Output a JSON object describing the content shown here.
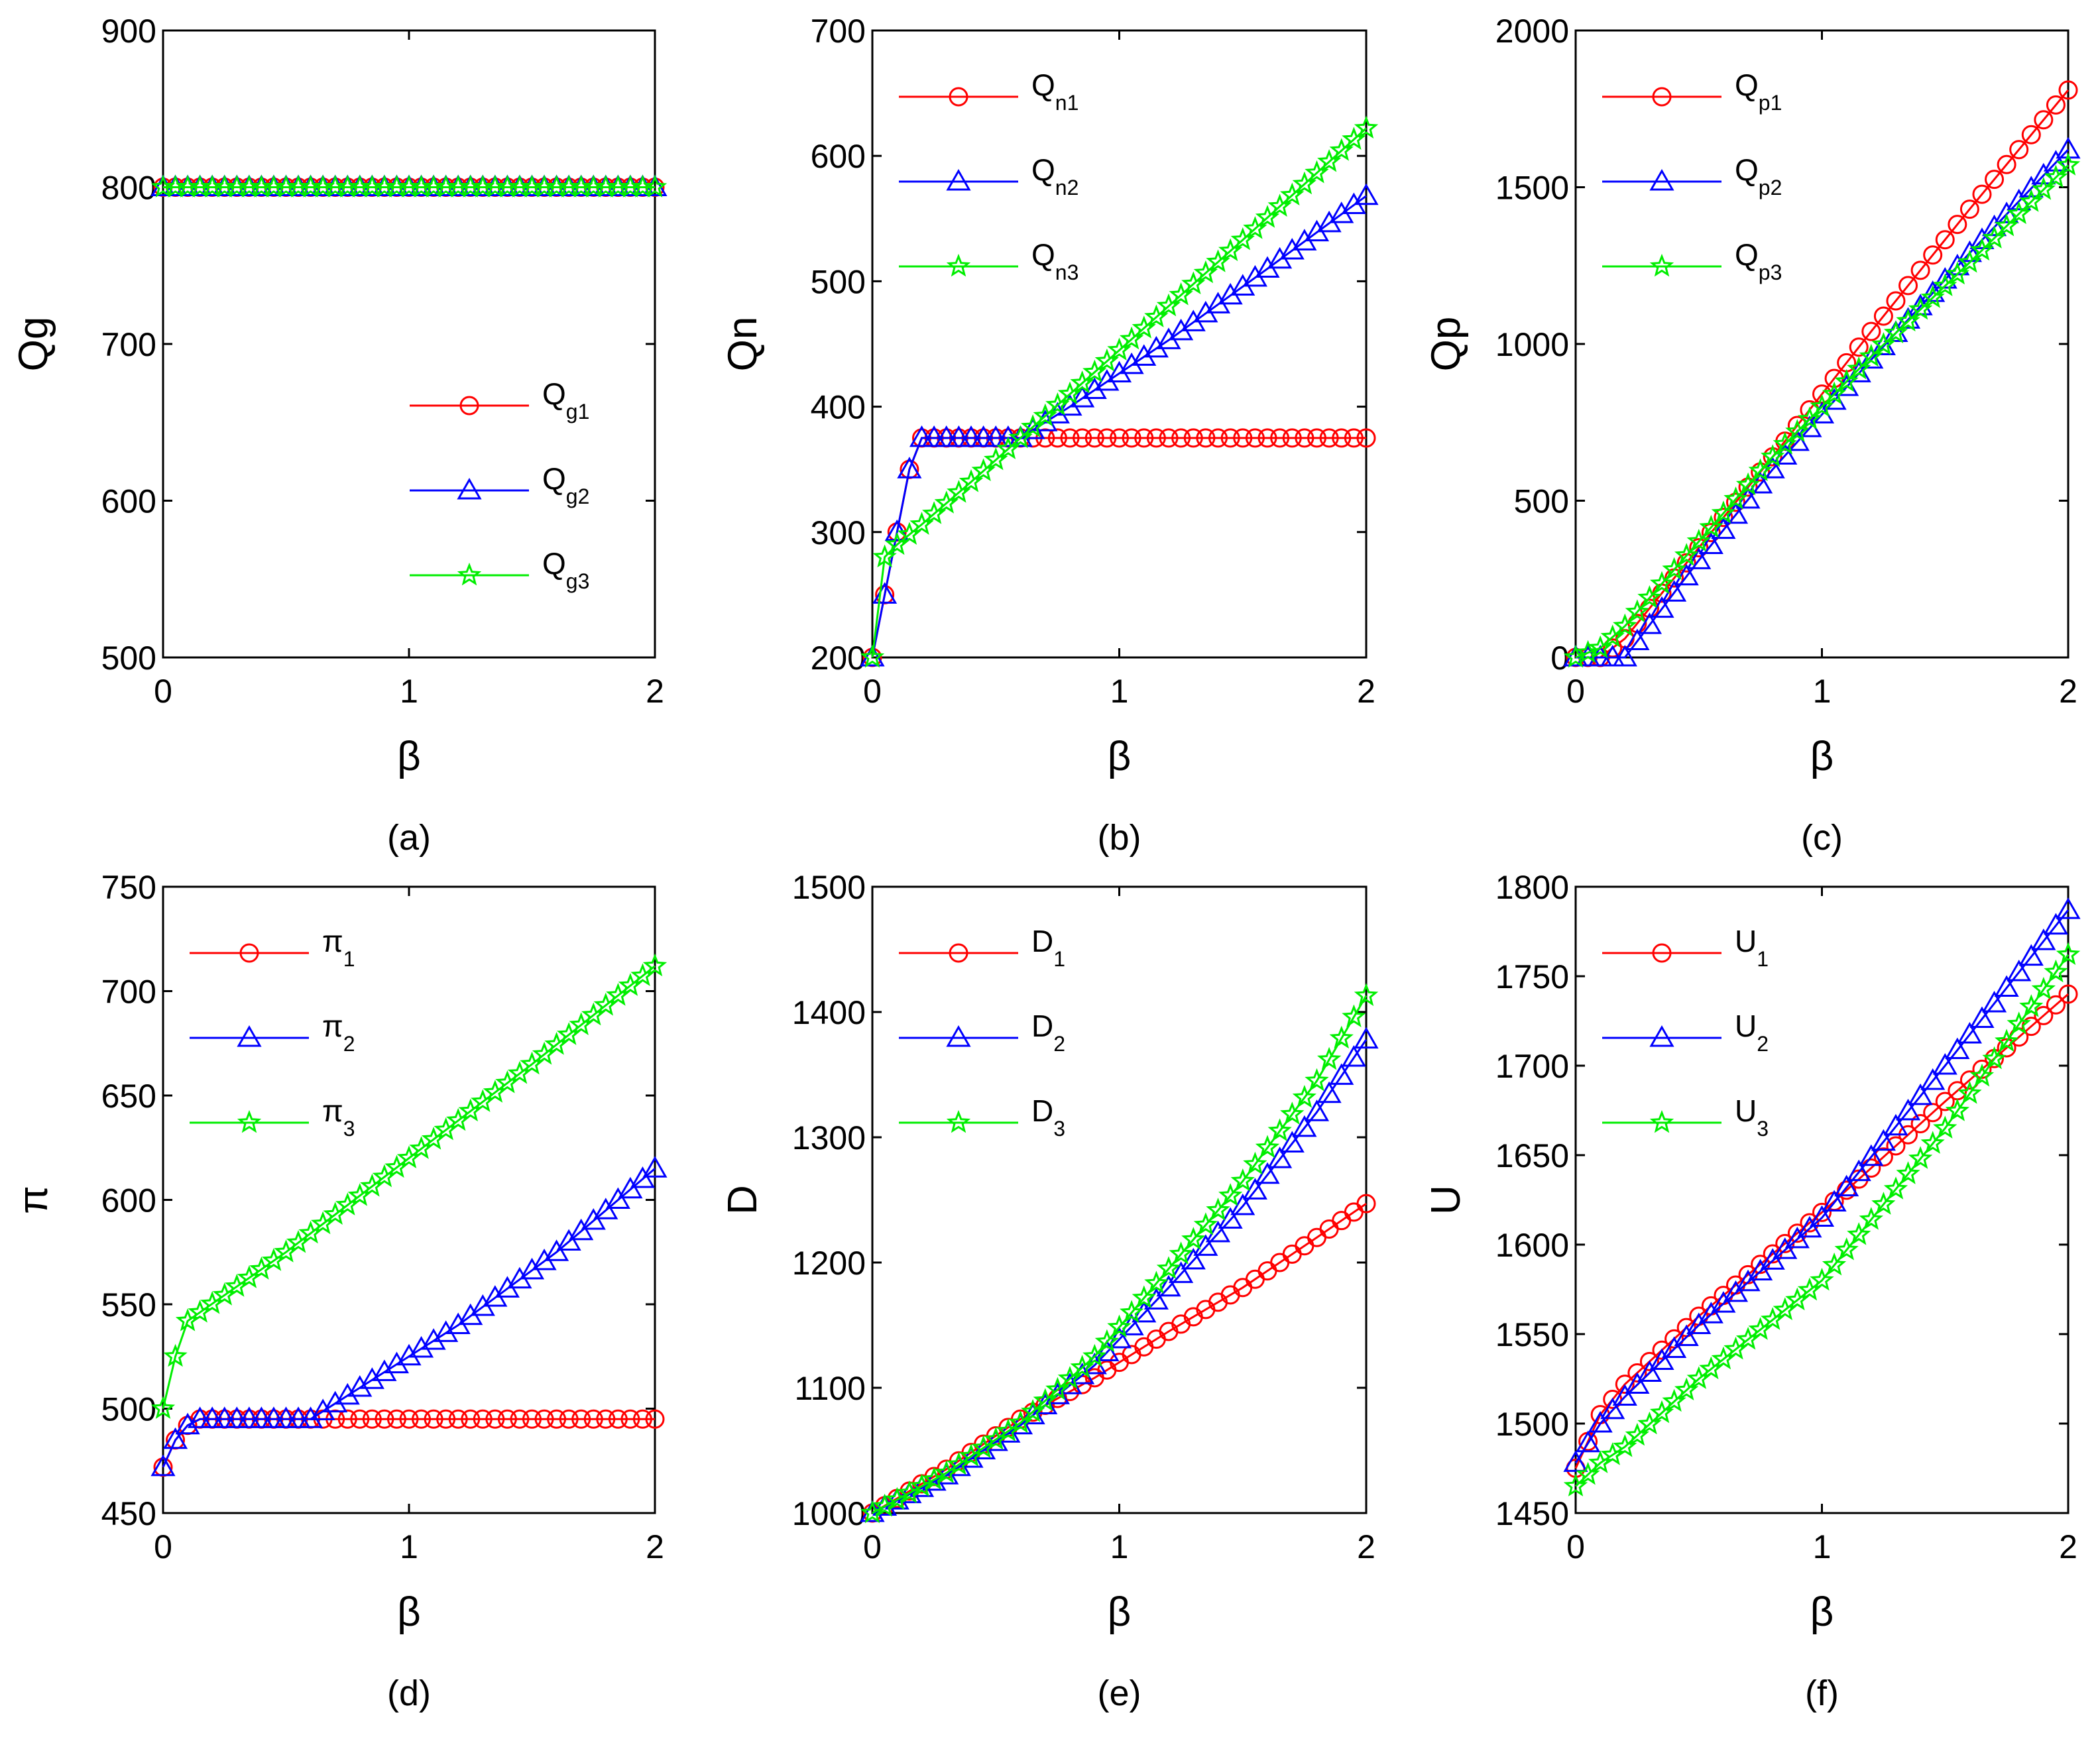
{
  "chart_data": [
    {
      "id": "a",
      "type": "line",
      "panel_label": "(a)",
      "xlabel": "β",
      "ylabel": "Qg",
      "xlim": [
        0,
        2
      ],
      "ylim": [
        500,
        900
      ],
      "xticks": [
        0,
        1,
        2
      ],
      "yticks": [
        500,
        600,
        700,
        800,
        900
      ],
      "legend_position": "bottom-right",
      "series": [
        {
          "name": "Q",
          "sub": "g1",
          "color": "#ff0000",
          "marker": "circle",
          "points": [
            [
              0,
              800
            ],
            [
              2,
              800
            ]
          ]
        },
        {
          "name": "Q",
          "sub": "g2",
          "color": "#0000ff",
          "marker": "triangle",
          "points": [
            [
              0,
              800
            ],
            [
              2,
              800
            ]
          ]
        },
        {
          "name": "Q",
          "sub": "g3",
          "color": "#00ee00",
          "marker": "star",
          "points": [
            [
              0,
              800
            ],
            [
              2,
              800
            ]
          ]
        }
      ]
    },
    {
      "id": "b",
      "type": "line",
      "panel_label": "(b)",
      "xlabel": "β",
      "ylabel": "Qn",
      "xlim": [
        0,
        2
      ],
      "ylim": [
        200,
        700
      ],
      "xticks": [
        0,
        1,
        2
      ],
      "yticks": [
        200,
        300,
        400,
        500,
        600,
        700
      ],
      "legend_position": "top-left",
      "series": [
        {
          "name": "Q",
          "sub": "n1",
          "color": "#ff0000",
          "marker": "circle",
          "points": [
            [
              0,
              200
            ],
            [
              0.05,
              250
            ],
            [
              0.1,
              300
            ],
            [
              0.15,
              350
            ],
            [
              0.2,
              375
            ],
            [
              2,
              375
            ]
          ]
        },
        {
          "name": "Q",
          "sub": "n2",
          "color": "#0000ff",
          "marker": "triangle",
          "points": [
            [
              0,
              200
            ],
            [
              0.05,
              250
            ],
            [
              0.1,
              300
            ],
            [
              0.15,
              350
            ],
            [
              0.2,
              375
            ],
            [
              0.6,
              375
            ],
            [
              0.8,
              400
            ],
            [
              1.2,
              453
            ],
            [
              1.6,
              510
            ],
            [
              2,
              568
            ]
          ]
        },
        {
          "name": "Q",
          "sub": "n3",
          "color": "#00ee00",
          "marker": "star",
          "points": [
            [
              0,
              200
            ],
            [
              0.05,
              280
            ],
            [
              0.1,
              290
            ],
            [
              0.2,
              306
            ],
            [
              0.4,
              340
            ],
            [
              0.6,
              375
            ],
            [
              1.0,
              445
            ],
            [
              1.5,
              533
            ],
            [
              2,
              622
            ]
          ]
        }
      ]
    },
    {
      "id": "c",
      "type": "line",
      "panel_label": "(c)",
      "xlabel": "β",
      "ylabel": "Qp",
      "xlim": [
        0,
        2
      ],
      "ylim": [
        0,
        2000
      ],
      "xticks": [
        0,
        1,
        2
      ],
      "yticks": [
        0,
        500,
        1000,
        1500,
        2000
      ],
      "legend_position": "top-left",
      "series": [
        {
          "name": "Q",
          "sub": "p1",
          "color": "#ff0000",
          "marker": "circle",
          "points": [
            [
              0,
              0
            ],
            [
              0.1,
              0
            ],
            [
              0.2,
              60
            ],
            [
              0.5,
              350
            ],
            [
              0.8,
              640
            ],
            [
              1.2,
              1040
            ],
            [
              1.6,
              1430
            ],
            [
              2,
              1810
            ]
          ]
        },
        {
          "name": "Q",
          "sub": "p2",
          "color": "#0000ff",
          "marker": "triangle",
          "points": [
            [
              0,
              0
            ],
            [
              0.15,
              0
            ],
            [
              0.2,
              0
            ],
            [
              0.5,
              310
            ],
            [
              0.8,
              600
            ],
            [
              1.2,
              950
            ],
            [
              1.6,
              1290
            ],
            [
              2,
              1620
            ]
          ]
        },
        {
          "name": "Q",
          "sub": "p3",
          "color": "#00ee00",
          "marker": "star",
          "points": [
            [
              0,
              0
            ],
            [
              0.1,
              30
            ],
            [
              0.2,
              100
            ],
            [
              0.5,
              370
            ],
            [
              0.8,
              640
            ],
            [
              1.2,
              960
            ],
            [
              1.6,
              1260
            ],
            [
              2,
              1570
            ]
          ]
        }
      ]
    },
    {
      "id": "d",
      "type": "line",
      "panel_label": "(d)",
      "xlabel": "β",
      "ylabel": "π",
      "xlim": [
        0,
        2
      ],
      "ylim": [
        450,
        750
      ],
      "xticks": [
        0,
        1,
        2
      ],
      "yticks": [
        450,
        500,
        550,
        600,
        650,
        700,
        750
      ],
      "legend_position": "top-left",
      "series": [
        {
          "name": "π",
          "sub": "1",
          "color": "#ff0000",
          "marker": "circle",
          "points": [
            [
              0,
              472
            ],
            [
              0.05,
              485
            ],
            [
              0.1,
              492
            ],
            [
              0.15,
              495
            ],
            [
              2,
              495
            ]
          ]
        },
        {
          "name": "π",
          "sub": "2",
          "color": "#0000ff",
          "marker": "triangle",
          "points": [
            [
              0,
              472
            ],
            [
              0.05,
              485
            ],
            [
              0.1,
              492
            ],
            [
              0.15,
              495
            ],
            [
              0.6,
              495
            ],
            [
              0.8,
              510
            ],
            [
              1.2,
              540
            ],
            [
              1.6,
              575
            ],
            [
              2,
              615
            ]
          ]
        },
        {
          "name": "π",
          "sub": "3",
          "color": "#00ee00",
          "marker": "star",
          "points": [
            [
              0,
              500
            ],
            [
              0.05,
              525
            ],
            [
              0.1,
              542
            ],
            [
              0.5,
              575
            ],
            [
              1.0,
              620
            ],
            [
              1.5,
              665
            ],
            [
              2,
              712
            ]
          ]
        }
      ]
    },
    {
      "id": "e",
      "type": "line",
      "panel_label": "(e)",
      "xlabel": "β",
      "ylabel": "D",
      "xlim": [
        0,
        2
      ],
      "ylim": [
        1000,
        1500
      ],
      "xticks": [
        0,
        1,
        2
      ],
      "yticks": [
        1000,
        1100,
        1200,
        1300,
        1400,
        1500
      ],
      "legend_position": "top-left",
      "series": [
        {
          "name": "D",
          "sub": "1",
          "color": "#ff0000",
          "marker": "circle",
          "points": [
            [
              0,
              1000
            ],
            [
              0.3,
              1035
            ],
            [
              0.6,
              1075
            ],
            [
              0.9,
              1108
            ],
            [
              1.2,
              1145
            ],
            [
              1.5,
              1180
            ],
            [
              1.8,
              1220
            ],
            [
              2,
              1247
            ]
          ]
        },
        {
          "name": "D",
          "sub": "2",
          "color": "#0000ff",
          "marker": "triangle",
          "points": [
            [
              0,
              1000
            ],
            [
              0.3,
              1030
            ],
            [
              0.6,
              1070
            ],
            [
              0.9,
              1118
            ],
            [
              1.2,
              1180
            ],
            [
              1.5,
              1245
            ],
            [
              1.8,
              1320
            ],
            [
              2,
              1378
            ]
          ]
        },
        {
          "name": "D",
          "sub": "3",
          "color": "#00ee00",
          "marker": "star",
          "points": [
            [
              0,
              1000
            ],
            [
              0.3,
              1032
            ],
            [
              0.6,
              1072
            ],
            [
              0.9,
              1125
            ],
            [
              1.2,
              1195
            ],
            [
              1.5,
              1265
            ],
            [
              1.8,
              1345
            ],
            [
              2,
              1413
            ]
          ]
        }
      ]
    },
    {
      "id": "f",
      "type": "line",
      "panel_label": "(f)",
      "xlabel": "β",
      "ylabel": "U",
      "xlim": [
        0,
        2
      ],
      "ylim": [
        1450,
        1800
      ],
      "xticks": [
        0,
        1,
        2
      ],
      "yticks": [
        1450,
        1500,
        1550,
        1600,
        1650,
        1700,
        1750,
        1800
      ],
      "legend_position": "top-left",
      "series": [
        {
          "name": "U",
          "sub": "1",
          "color": "#ff0000",
          "marker": "circle",
          "points": [
            [
              0,
              1475
            ],
            [
              0.1,
              1505
            ],
            [
              0.2,
              1522
            ],
            [
              0.5,
              1560
            ],
            [
              1.0,
              1618
            ],
            [
              1.5,
              1680
            ],
            [
              2,
              1740
            ]
          ]
        },
        {
          "name": "U",
          "sub": "2",
          "color": "#0000ff",
          "marker": "triangle",
          "points": [
            [
              0,
              1478
            ],
            [
              0.1,
              1500
            ],
            [
              0.2,
              1515
            ],
            [
              0.5,
              1555
            ],
            [
              1.0,
              1615
            ],
            [
              1.5,
              1700
            ],
            [
              2,
              1787
            ]
          ]
        },
        {
          "name": "U",
          "sub": "3",
          "color": "#00ee00",
          "marker": "star",
          "points": [
            [
              0,
              1465
            ],
            [
              0.1,
              1478
            ],
            [
              0.2,
              1487
            ],
            [
              0.5,
              1525
            ],
            [
              1.0,
              1580
            ],
            [
              1.5,
              1665
            ],
            [
              2,
              1762
            ]
          ]
        }
      ]
    }
  ]
}
